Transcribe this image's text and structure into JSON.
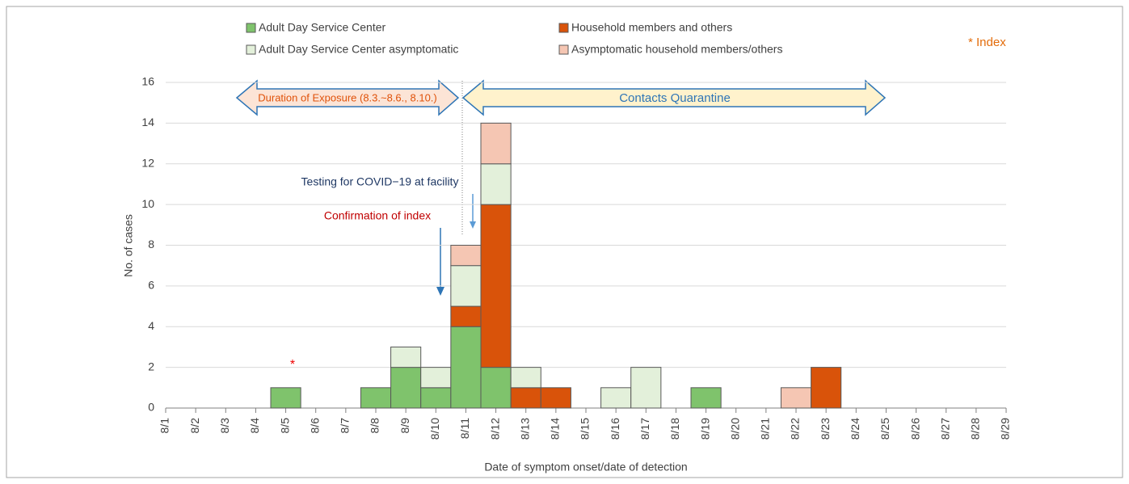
{
  "chart_data": {
    "type": "bar",
    "stacked": true,
    "xlabel": "Date of symptom onset/date of detection",
    "ylabel": "No. of cases",
    "categories": [
      "8/1",
      "8/2",
      "8/3",
      "8/4",
      "8/5",
      "8/6",
      "8/7",
      "8/8",
      "8/9",
      "8/10",
      "8/11",
      "8/12",
      "8/13",
      "8/14",
      "8/15",
      "8/16",
      "8/17",
      "8/18",
      "8/19",
      "8/20",
      "8/21",
      "8/22",
      "8/23",
      "8/24",
      "8/25",
      "8/26",
      "8/27",
      "8/28",
      "8/29"
    ],
    "series": [
      {
        "name": "Adult Day Service Center",
        "color": "#7fc36c",
        "values": [
          0,
          0,
          0,
          0,
          1,
          0,
          0,
          1,
          2,
          1,
          4,
          2,
          0,
          0,
          0,
          0,
          0,
          0,
          1,
          0,
          0,
          0,
          0,
          0,
          0,
          0,
          0,
          0,
          0
        ]
      },
      {
        "name": "Household members and others",
        "color": "#d9530a",
        "values": [
          0,
          0,
          0,
          0,
          0,
          0,
          0,
          0,
          0,
          0,
          1,
          8,
          1,
          1,
          0,
          0,
          0,
          0,
          0,
          0,
          0,
          0,
          2,
          0,
          0,
          0,
          0,
          0,
          0
        ]
      },
      {
        "name": "Adult Day Service Center asymptomatic",
        "color": "#e3f0da",
        "values": [
          0,
          0,
          0,
          0,
          0,
          0,
          0,
          0,
          1,
          1,
          2,
          2,
          1,
          0,
          0,
          1,
          2,
          0,
          0,
          0,
          0,
          0,
          0,
          0,
          0,
          0,
          0,
          0,
          0
        ]
      },
      {
        "name": "Asymptomatic household members/others",
        "color": "#f5c6b3",
        "values": [
          0,
          0,
          0,
          0,
          0,
          0,
          0,
          0,
          0,
          0,
          1,
          2,
          0,
          0,
          0,
          0,
          0,
          0,
          0,
          0,
          0,
          1,
          0,
          0,
          0,
          0,
          0,
          0,
          0
        ]
      }
    ],
    "ylim": [
      0,
      16
    ],
    "yticks": [
      0,
      2,
      4,
      6,
      8,
      10,
      12,
      14,
      16
    ],
    "grid": true,
    "legend_note": "* Index",
    "index_marker": "*",
    "annotations": {
      "exposure": "Duration  of Exposure  (8.3.~8.6., 8.10.)",
      "quarantine": "Contacts Quarantine",
      "testing": "Testing for COVID−19 at facility",
      "confirmation": "Confirmation of index"
    }
  }
}
